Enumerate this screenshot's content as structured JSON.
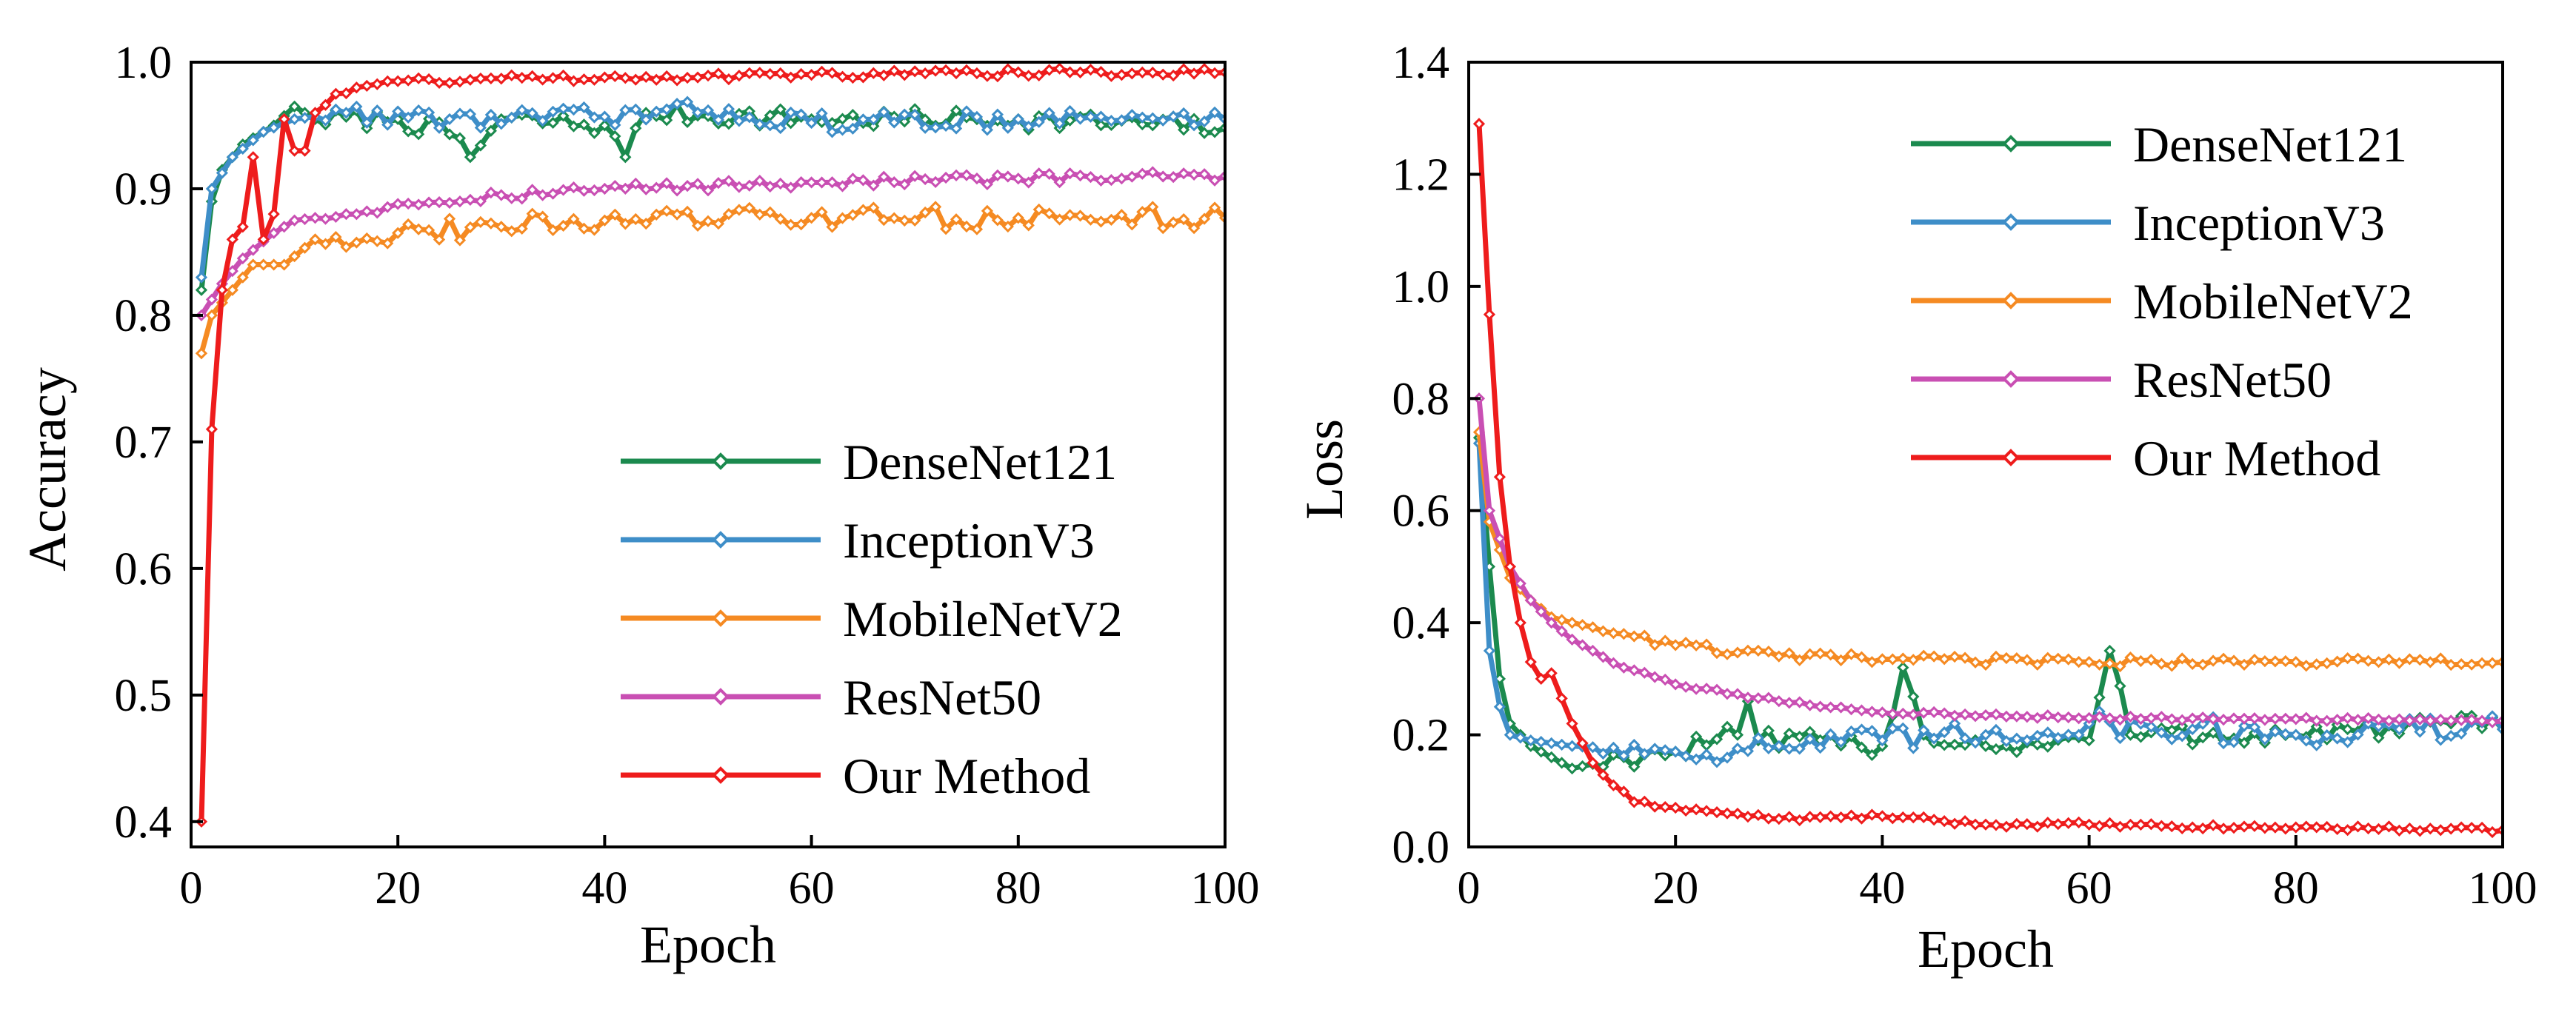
{
  "chart_data": [
    {
      "type": "line",
      "title": "",
      "xlabel": "Epoch",
      "ylabel": "Accuracy",
      "xlim": [
        0,
        100
      ],
      "ylim": [
        0.38,
        1.0
      ],
      "xticks": [
        0,
        20,
        40,
        60,
        80,
        100
      ],
      "yticks": [
        0.4,
        0.5,
        0.6,
        0.7,
        0.8,
        0.9,
        1.0
      ],
      "legend_position": "lower-right",
      "series": [
        {
          "name": "DenseNet121",
          "color": "#1b8a4e",
          "marker": "diamond",
          "anchors": [
            [
              1,
              0.82
            ],
            [
              2,
              0.89
            ],
            [
              3,
              0.915
            ],
            [
              5,
              0.935
            ],
            [
              8,
              0.95
            ],
            [
              10,
              0.965
            ],
            [
              12,
              0.955
            ],
            [
              20,
              0.955
            ],
            [
              26,
              0.94
            ],
            [
              27,
              0.925
            ],
            [
              30,
              0.955
            ],
            [
              40,
              0.95
            ],
            [
              42,
              0.925
            ],
            [
              44,
              0.96
            ],
            [
              60,
              0.955
            ],
            [
              80,
              0.955
            ],
            [
              100,
              0.948
            ]
          ],
          "noise": 0.008
        },
        {
          "name": "InceptionV3",
          "color": "#3e8ec8",
          "marker": "diamond",
          "anchors": [
            [
              1,
              0.83
            ],
            [
              2,
              0.9
            ],
            [
              4,
              0.925
            ],
            [
              7,
              0.945
            ],
            [
              10,
              0.955
            ],
            [
              15,
              0.96
            ],
            [
              25,
              0.955
            ],
            [
              40,
              0.957
            ],
            [
              50,
              0.962
            ],
            [
              60,
              0.952
            ],
            [
              80,
              0.955
            ],
            [
              100,
              0.955
            ]
          ],
          "noise": 0.008
        },
        {
          "name": "MobileNetV2",
          "color": "#f58a22",
          "marker": "diamond",
          "anchors": [
            [
              1,
              0.77
            ],
            [
              2,
              0.8
            ],
            [
              4,
              0.82
            ],
            [
              6,
              0.84
            ],
            [
              9,
              0.84
            ],
            [
              12,
              0.86
            ],
            [
              20,
              0.865
            ],
            [
              30,
              0.87
            ],
            [
              40,
              0.875
            ],
            [
              60,
              0.877
            ],
            [
              80,
              0.877
            ],
            [
              100,
              0.877
            ]
          ],
          "noise": 0.009
        },
        {
          "name": "ResNet50",
          "color": "#c94fb3",
          "marker": "diamond",
          "anchors": [
            [
              1,
              0.8
            ],
            [
              3,
              0.825
            ],
            [
              5,
              0.845
            ],
            [
              8,
              0.865
            ],
            [
              10,
              0.875
            ],
            [
              15,
              0.88
            ],
            [
              20,
              0.888
            ],
            [
              30,
              0.895
            ],
            [
              40,
              0.9
            ],
            [
              60,
              0.905
            ],
            [
              80,
              0.908
            ],
            [
              100,
              0.91
            ]
          ],
          "noise": 0.004
        },
        {
          "name": "Our Method",
          "color": "#ee1c1c",
          "marker": "diamond",
          "anchors": [
            [
              1,
              0.4
            ],
            [
              2,
              0.71
            ],
            [
              3,
              0.82
            ],
            [
              4,
              0.86
            ],
            [
              5,
              0.87
            ],
            [
              6,
              0.925
            ],
            [
              7,
              0.86
            ],
            [
              8,
              0.88
            ],
            [
              9,
              0.955
            ],
            [
              10,
              0.93
            ],
            [
              11,
              0.93
            ],
            [
              12,
              0.96
            ],
            [
              14,
              0.975
            ],
            [
              16,
              0.98
            ],
            [
              20,
              0.985
            ],
            [
              30,
              0.987
            ],
            [
              40,
              0.988
            ],
            [
              60,
              0.99
            ],
            [
              80,
              0.992
            ],
            [
              100,
              0.992
            ]
          ],
          "noise": 0.003
        }
      ]
    },
    {
      "type": "line",
      "title": "",
      "xlabel": "Epoch",
      "ylabel": "Loss",
      "xlim": [
        0,
        100
      ],
      "ylim": [
        0.0,
        1.4
      ],
      "xticks": [
        0,
        20,
        40,
        60,
        80,
        100
      ],
      "yticks": [
        0.0,
        0.2,
        0.4,
        0.6,
        0.8,
        1.0,
        1.2,
        1.4
      ],
      "legend_position": "upper-right",
      "series": [
        {
          "name": "DenseNet121",
          "color": "#1b8a4e",
          "marker": "diamond",
          "anchors": [
            [
              1,
              0.73
            ],
            [
              2,
              0.5
            ],
            [
              3,
              0.3
            ],
            [
              4,
              0.22
            ],
            [
              6,
              0.18
            ],
            [
              8,
              0.16
            ],
            [
              10,
              0.14
            ],
            [
              15,
              0.16
            ],
            [
              20,
              0.17
            ],
            [
              26,
              0.2
            ],
            [
              27,
              0.26
            ],
            [
              28,
              0.19
            ],
            [
              40,
              0.18
            ],
            [
              42,
              0.32
            ],
            [
              44,
              0.2
            ],
            [
              50,
              0.18
            ],
            [
              60,
              0.19
            ],
            [
              62,
              0.35
            ],
            [
              64,
              0.2
            ],
            [
              80,
              0.2
            ],
            [
              95,
              0.22
            ],
            [
              100,
              0.21
            ]
          ],
          "noise": 0.02
        },
        {
          "name": "InceptionV3",
          "color": "#3e8ec8",
          "marker": "diamond",
          "anchors": [
            [
              1,
              0.72
            ],
            [
              2,
              0.35
            ],
            [
              3,
              0.25
            ],
            [
              4,
              0.2
            ],
            [
              6,
              0.19
            ],
            [
              10,
              0.18
            ],
            [
              20,
              0.17
            ],
            [
              30,
              0.18
            ],
            [
              40,
              0.19
            ],
            [
              50,
              0.2
            ],
            [
              60,
              0.22
            ],
            [
              70,
              0.21
            ],
            [
              80,
              0.2
            ],
            [
              90,
              0.21
            ],
            [
              100,
              0.21
            ]
          ],
          "noise": 0.025
        },
        {
          "name": "MobileNetV2",
          "color": "#f58a22",
          "marker": "diamond",
          "anchors": [
            [
              1,
              0.74
            ],
            [
              2,
              0.58
            ],
            [
              4,
              0.48
            ],
            [
              6,
              0.44
            ],
            [
              8,
              0.41
            ],
            [
              10,
              0.4
            ],
            [
              15,
              0.38
            ],
            [
              20,
              0.36
            ],
            [
              30,
              0.34
            ],
            [
              40,
              0.335
            ],
            [
              60,
              0.33
            ],
            [
              80,
              0.33
            ],
            [
              100,
              0.33
            ]
          ],
          "noise": 0.008
        },
        {
          "name": "ResNet50",
          "color": "#c94fb3",
          "marker": "diamond",
          "anchors": [
            [
              1,
              0.8
            ],
            [
              2,
              0.6
            ],
            [
              4,
              0.5
            ],
            [
              6,
              0.44
            ],
            [
              8,
              0.4
            ],
            [
              10,
              0.37
            ],
            [
              15,
              0.32
            ],
            [
              20,
              0.29
            ],
            [
              30,
              0.26
            ],
            [
              40,
              0.24
            ],
            [
              50,
              0.235
            ],
            [
              60,
              0.23
            ],
            [
              80,
              0.228
            ],
            [
              100,
              0.225
            ]
          ],
          "noise": 0.003
        },
        {
          "name": "Our Method",
          "color": "#ee1c1c",
          "marker": "diamond",
          "anchors": [
            [
              1,
              1.29
            ],
            [
              2,
              0.95
            ],
            [
              3,
              0.66
            ],
            [
              4,
              0.5
            ],
            [
              5,
              0.4
            ],
            [
              6,
              0.33
            ],
            [
              7,
              0.3
            ],
            [
              8,
              0.31
            ],
            [
              10,
              0.22
            ],
            [
              12,
              0.15
            ],
            [
              14,
              0.11
            ],
            [
              16,
              0.08
            ],
            [
              20,
              0.07
            ],
            [
              25,
              0.06
            ],
            [
              30,
              0.05
            ],
            [
              40,
              0.055
            ],
            [
              50,
              0.04
            ],
            [
              60,
              0.04
            ],
            [
              70,
              0.035
            ],
            [
              80,
              0.035
            ],
            [
              100,
              0.03
            ]
          ],
          "noise": 0.004
        }
      ]
    }
  ]
}
